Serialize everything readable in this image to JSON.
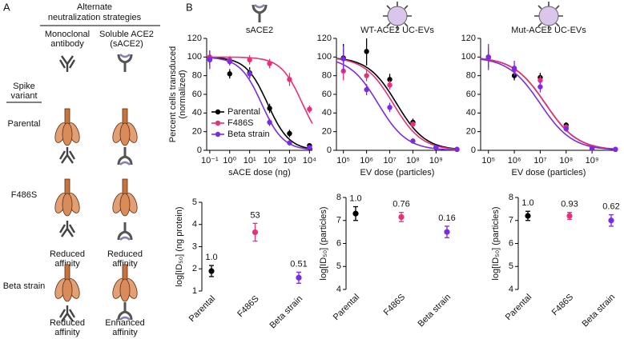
{
  "figure_labels": [
    "A",
    "B"
  ],
  "panel_a": {
    "header": [
      "Alternate",
      "neutralization strategies"
    ],
    "columns": [
      [
        "Monoclonal",
        "antibody"
      ],
      [
        "Soluble ACE2",
        "(sACE2)"
      ]
    ],
    "row_header": [
      "Spike",
      "variant"
    ],
    "rows": [
      {
        "label": "Parental"
      },
      {
        "label": "F486S",
        "notes": [
          [
            "Reduced",
            "affinity"
          ],
          [
            "Reduced",
            "affinity"
          ]
        ]
      },
      {
        "label": "Beta strain",
        "notes": [
          [
            "Reduced",
            "affinity"
          ],
          [
            "Enhanced",
            "affinity"
          ]
        ]
      }
    ]
  },
  "chart_data": [
    {
      "type": "scatter",
      "title": "sACE2",
      "x_label": "sACE dose (ng)",
      "y_label": [
        "Percent cells transduced",
        "(normalized)"
      ],
      "x": [
        0.1,
        1,
        10,
        100,
        1000,
        10000
      ],
      "log_x": true,
      "xlim": [
        0.07,
        14000
      ],
      "xticks": [
        {
          "value": 0.1,
          "label": "10⁻¹"
        },
        {
          "value": 1,
          "label": "10⁰"
        },
        {
          "value": 10,
          "label": "10¹"
        },
        {
          "value": 100,
          "label": "10²"
        },
        {
          "value": 1000,
          "label": "10³"
        },
        {
          "value": 10000,
          "label": "10⁴"
        }
      ],
      "ylim": [
        0,
        120
      ],
      "yticks": [
        0,
        20,
        40,
        60,
        80,
        100,
        120
      ],
      "legend": "lower-left",
      "series": [
        {
          "name": "Parental",
          "color": "#000000",
          "values": [
            99,
            82,
            83,
            45,
            18,
            5
          ],
          "errors": [
            8,
            5,
            6,
            5,
            4,
            2
          ]
        },
        {
          "name": "F486S",
          "color": "#e6317a",
          "values": [
            100,
            97,
            97,
            93,
            76,
            44
          ],
          "errors": [
            5,
            4,
            5,
            5,
            7,
            4
          ]
        },
        {
          "name": "Beta strain",
          "color": "#7b2be2",
          "values": [
            97,
            95,
            82,
            30,
            8,
            3
          ],
          "errors": [
            10,
            4,
            5,
            4,
            3,
            2
          ]
        }
      ]
    },
    {
      "type": "scatter",
      "title": "WT-ACE2 UC-EVs",
      "x_label": "EV dose (particles)",
      "x": [
        100000,
        1000000,
        10000000,
        100000000,
        1000000000,
        8000000000
      ],
      "log_x": true,
      "xlim": [
        50000,
        9000000000
      ],
      "xticks": [
        {
          "value": 100000,
          "label": "10⁵"
        },
        {
          "value": 1000000,
          "label": "10⁶"
        },
        {
          "value": 10000000,
          "label": "10⁷"
        },
        {
          "value": 100000000,
          "label": "10⁸"
        },
        {
          "value": 1000000000,
          "label": "10⁹"
        }
      ],
      "ylim": [
        0,
        120
      ],
      "yticks": [
        0,
        20,
        40,
        60,
        80,
        100,
        120
      ],
      "series": [
        {
          "color": "#000000",
          "values": [
            99,
            106,
            76,
            30,
            3,
            1
          ],
          "errors": [
            15,
            15,
            6,
            4,
            2,
            1
          ]
        },
        {
          "color": "#e6317a",
          "values": [
            85,
            80,
            70,
            28,
            3,
            1
          ],
          "errors": [
            10,
            6,
            5,
            3,
            2,
            1
          ]
        },
        {
          "color": "#7b2be2",
          "values": [
            98,
            65,
            46,
            10,
            3,
            1
          ],
          "errors": [
            14,
            6,
            5,
            3,
            2,
            1
          ]
        }
      ]
    },
    {
      "type": "scatter",
      "title": "Mut-ACE2 UC-EVs",
      "x_label": "EV dose (particles)",
      "x": [
        100000,
        1000000,
        10000000,
        100000000,
        1000000000,
        8000000000
      ],
      "log_x": true,
      "xlim": [
        50000,
        9000000000
      ],
      "xticks": [
        {
          "value": 100000,
          "label": "10⁵"
        },
        {
          "value": 1000000,
          "label": "10⁶"
        },
        {
          "value": 10000000,
          "label": "10⁷"
        },
        {
          "value": 100000000,
          "label": "10⁸"
        },
        {
          "value": 1000000000,
          "label": "10⁹"
        }
      ],
      "ylim": [
        0,
        120
      ],
      "yticks": [
        0,
        20,
        40,
        60,
        80,
        100,
        120
      ],
      "series": [
        {
          "color": "#000000",
          "values": [
            100,
            80,
            78,
            27,
            2,
            1
          ],
          "errors": [
            10,
            5,
            5,
            3,
            2,
            1
          ]
        },
        {
          "color": "#e6317a",
          "values": [
            99,
            86,
            75,
            25,
            2,
            1
          ],
          "errors": [
            10,
            5,
            5,
            3,
            2,
            1
          ]
        },
        {
          "color": "#7b2be2",
          "values": [
            100,
            88,
            68,
            23,
            2,
            1
          ],
          "errors": [
            14,
            8,
            6,
            3,
            2,
            1
          ]
        }
      ]
    },
    {
      "type": "dot",
      "y_label": "log[ID₅₀] (ng protein)",
      "categories": [
        "Parental",
        "F486S",
        "Beta strain"
      ],
      "values": [
        1.9,
        3.65,
        1.6
      ],
      "errors": [
        0.25,
        0.4,
        0.25
      ],
      "annotations": [
        "1.0",
        "53",
        "0.51"
      ],
      "colors": [
        "#000000",
        "#e6317a",
        "#7b2be2"
      ],
      "ylim": [
        1,
        5
      ],
      "yticks": [
        1,
        2,
        3,
        4,
        5
      ]
    },
    {
      "type": "dot",
      "y_label": "log[ID₅₀] (particles)",
      "categories": [
        "Parental",
        "F486S",
        "Beta strain"
      ],
      "values": [
        7.3,
        7.15,
        6.5
      ],
      "errors": [
        0.3,
        0.2,
        0.25
      ],
      "annotations": [
        "1.0",
        "0.76",
        "0.16"
      ],
      "colors": [
        "#000000",
        "#e6317a",
        "#7b2be2"
      ],
      "ylim": [
        4,
        8
      ],
      "yticks": [
        4,
        5,
        6,
        7,
        8
      ]
    },
    {
      "type": "dot",
      "y_label": "log[ID₅₀] (particles)",
      "categories": [
        "Parental",
        "F486S",
        "Beta strain"
      ],
      "values": [
        7.2,
        7.2,
        7.0
      ],
      "errors": [
        0.2,
        0.15,
        0.25
      ],
      "annotations": [
        "1.0",
        "0.93",
        "0.62"
      ],
      "colors": [
        "#000000",
        "#e6317a",
        "#7b2be2"
      ],
      "ylim": [
        4,
        8
      ],
      "yticks": [
        4,
        5,
        6,
        7,
        8
      ]
    }
  ]
}
